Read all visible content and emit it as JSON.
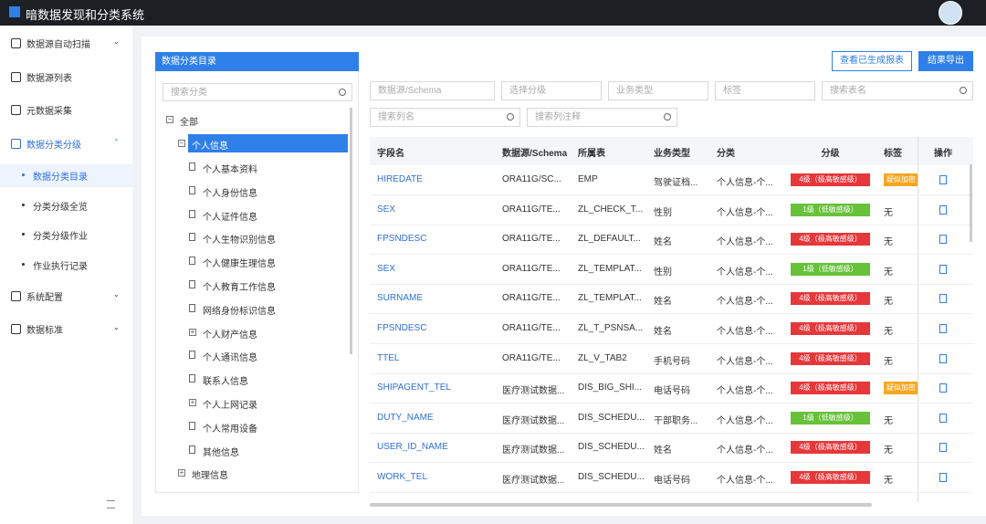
{
  "header": {
    "title": "暗数据发现和分类系统"
  },
  "sidebar": {
    "items": [
      "数据源自动扫描",
      "数据源列表",
      "元数据采集",
      "数据分类分级",
      "数据分类目录",
      "分类分级全览",
      "分类分级作业",
      "作业执行记录",
      "系统配置",
      "数据标准"
    ]
  },
  "tree": {
    "title": "数据分类目录",
    "search_placeholder": "搜索分类",
    "nodes": [
      "全部",
      "个人信息",
      "个人基本资料",
      "个人身份信息",
      "个人证件信息",
      "个人生物识别信息",
      "个人健康生理信息",
      "个人教育工作信息",
      "网络身份标识信息",
      "个人财产信息",
      "个人通讯信息",
      "联系人信息",
      "个人上网记录",
      "个人常用设备",
      "其他信息",
      "地理信息"
    ]
  },
  "toolbar": {
    "buttons": [
      "查看已生成报表",
      "结果导出"
    ]
  },
  "filters": [
    "数据源/Schema",
    "选择分级",
    "业务类型",
    "标签",
    "搜索表名",
    "搜索列名",
    "搜索列注释"
  ],
  "table": {
    "columns": [
      "字段名",
      "数据源/Schema",
      "所属表",
      "业务类型",
      "分类",
      "分级",
      "标签",
      "操作"
    ],
    "rows": [
      [
        "HIREDATE",
        "ORA11G/SC...",
        "EMP",
        "驾驶证档...",
        "个人信息-个...",
        "4级（极高敏感级）",
        "疑似加密"
      ],
      [
        "SEX",
        "ORA11G/TE...",
        "ZL_CHECK_T...",
        "性别",
        "个人信息-个...",
        "1级（低敏感级）",
        "无"
      ],
      [
        "FPSNDESC",
        "ORA11G/TE...",
        "ZL_DEFAULT...",
        "姓名",
        "个人信息-个...",
        "4级（极高敏感级）",
        "无"
      ],
      [
        "SEX",
        "ORA11G/TE...",
        "ZL_TEMPLAT...",
        "性别",
        "个人信息-个...",
        "1级（低敏感级）",
        "无"
      ],
      [
        "SURNAME",
        "ORA11G/TE...",
        "ZL_TEMPLAT...",
        "姓名",
        "个人信息-个...",
        "4级（极高敏感级）",
        "无"
      ],
      [
        "FPSNDESC",
        "ORA11G/TE...",
        "ZL_T_PSNSA...",
        "姓名",
        "个人信息-个...",
        "4级（极高敏感级）",
        "无"
      ],
      [
        "TTEL",
        "ORA11G/TE...",
        "ZL_V_TAB2",
        "手机号码",
        "个人信息-个...",
        "4级（极高敏感级）",
        "无"
      ],
      [
        "SHIPAGENT_TEL",
        "医疗测试数据...",
        "DIS_BIG_SHI...",
        "电话号码",
        "个人信息-个...",
        "4级（极高敏感级）",
        "疑似加密"
      ],
      [
        "DUTY_NAME",
        "医疗测试数据...",
        "DIS_SCHEDU...",
        "干部职务...",
        "个人信息-个...",
        "1级（低敏感级）",
        "无"
      ],
      [
        "USER_ID_NAME",
        "医疗测试数据...",
        "DIS_SCHEDU...",
        "姓名",
        "个人信息-个...",
        "4级（极高敏感级）",
        "无"
      ],
      [
        "WORK_TEL",
        "医疗测试数据...",
        "DIS_SCHEDU...",
        "电话号码",
        "个人信息-个...",
        "4级（极高敏感级）",
        "无"
      ]
    ]
  }
}
